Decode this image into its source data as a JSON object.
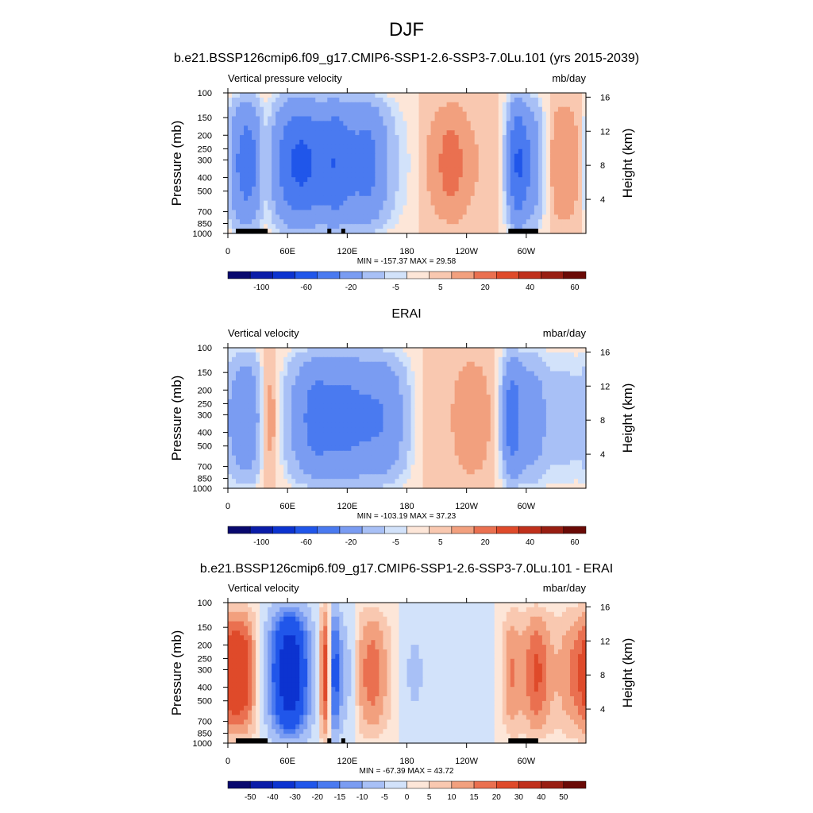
{
  "figure": {
    "title": "DJF"
  },
  "colors": {
    "pressure_velocity_scale": [
      "#08086e",
      "#0a1ca8",
      "#0c33d0",
      "#2056ea",
      "#4a7af0",
      "#7a9cf2",
      "#a8c0f6",
      "#d2e2fa",
      "#fde6d8",
      "#f9c8b0",
      "#f2a07e",
      "#ea7050",
      "#df4a2a",
      "#c0301c",
      "#981e12",
      "#6a0a06"
    ],
    "land_mask": "#000000"
  },
  "chart_data": [
    {
      "type": "heatmap",
      "title": "b.e21.BSSP126cmip6.f09_g17.CMIP6-SSP1-2.6-SSP3-7.0Lu.101 (yrs 2015-2039)",
      "left_label": "Vertical pressure velocity",
      "units": "mb/day",
      "ylabel": "Pressure (mb)",
      "y2label": "Height (km)",
      "x_ticks": [
        "0",
        "60E",
        "120E",
        "180",
        "120W",
        "60W"
      ],
      "y_ticks": [
        "100",
        "150",
        "200",
        "250",
        "300",
        "400",
        "500",
        "700",
        "850",
        "1000"
      ],
      "y2_ticks": [
        "16",
        "12",
        "8",
        "4"
      ],
      "min_max_text": "MIN = -157.37  MAX =  29.58",
      "colorbar_labels": [
        "-100",
        "-60",
        "-20",
        "-5",
        "5",
        "20",
        "40",
        "60"
      ],
      "xlim": [
        0,
        360
      ],
      "ylim": [
        1000,
        100
      ],
      "field": [
        {
          "lon": 0,
          "w": 8,
          "v": 2
        },
        {
          "lon": 10,
          "w": 14,
          "v": -45
        },
        {
          "lon": 25,
          "w": 8,
          "v": -20
        },
        {
          "lon": 38,
          "w": 6,
          "v": 12
        },
        {
          "lon": 60,
          "w": 14,
          "v": -45
        },
        {
          "lon": 80,
          "w": 12,
          "v": -40
        },
        {
          "lon": 108,
          "w": 14,
          "v": -55
        },
        {
          "lon": 142,
          "w": 14,
          "v": -45
        },
        {
          "lon": 175,
          "w": 12,
          "v": -6
        },
        {
          "lon": 200,
          "w": 10,
          "v": 2
        },
        {
          "lon": 225,
          "w": 16,
          "v": 12
        },
        {
          "lon": 260,
          "w": 10,
          "v": 3
        },
        {
          "lon": 290,
          "w": 7,
          "v": -50
        },
        {
          "lon": 305,
          "w": 10,
          "v": -35
        },
        {
          "lon": 330,
          "w": 12,
          "v": 10
        },
        {
          "lon": 355,
          "w": 10,
          "v": 22
        }
      ],
      "land_segments": [
        [
          8,
          40
        ],
        [
          100,
          104
        ],
        [
          114,
          118
        ],
        [
          282,
          312
        ]
      ]
    },
    {
      "type": "heatmap",
      "title": "ERAI",
      "left_label": "Vertical velocity",
      "units": "mbar/day",
      "ylabel": "Pressure (mb)",
      "y2label": "Height (km)",
      "x_ticks": [
        "0",
        "60E",
        "120E",
        "180",
        "120W",
        "60W"
      ],
      "y_ticks": [
        "100",
        "150",
        "200",
        "250",
        "300",
        "400",
        "500",
        "700",
        "850",
        "1000"
      ],
      "y2_ticks": [
        "16",
        "12",
        "8",
        "4"
      ],
      "min_max_text": "MIN = -103.19  MAX =  37.23",
      "colorbar_labels": [
        "-100",
        "-60",
        "-20",
        "-5",
        "5",
        "20",
        "40",
        "60"
      ],
      "xlim": [
        0,
        360
      ],
      "ylim": [
        1000,
        100
      ],
      "field": [
        {
          "lon": 5,
          "w": 8,
          "v": -6
        },
        {
          "lon": 20,
          "w": 12,
          "v": -35
        },
        {
          "lon": 42,
          "w": 8,
          "v": 15
        },
        {
          "lon": 60,
          "w": 10,
          "v": -10
        },
        {
          "lon": 85,
          "w": 14,
          "v": -35
        },
        {
          "lon": 120,
          "w": 22,
          "v": -45
        },
        {
          "lon": 160,
          "w": 16,
          "v": -30
        },
        {
          "lon": 200,
          "w": 12,
          "v": 2
        },
        {
          "lon": 245,
          "w": 16,
          "v": 10
        },
        {
          "lon": 285,
          "w": 7,
          "v": -45
        },
        {
          "lon": 305,
          "w": 12,
          "v": -30
        },
        {
          "lon": 340,
          "w": 14,
          "v": -15
        }
      ],
      "land_segments": []
    },
    {
      "type": "heatmap",
      "title": "b.e21.BSSP126cmip6.f09_g17.CMIP6-SSP1-2.6-SSP3-7.0Lu.101 - ERAI",
      "left_label": "Vertical velocity",
      "units": "mbar/day",
      "ylabel": "Pressure (mb)",
      "y2label": "Height (km)",
      "x_ticks": [
        "0",
        "60E",
        "120E",
        "180",
        "120W",
        "60W"
      ],
      "y_ticks": [
        "100",
        "150",
        "200",
        "250",
        "300",
        "400",
        "500",
        "700",
        "850",
        "1000"
      ],
      "y2_ticks": [
        "16",
        "12",
        "8",
        "4"
      ],
      "min_max_text": "MIN = -67.39  MAX =  43.72",
      "colorbar_labels": [
        "-50",
        "-40",
        "-30",
        "-20",
        "-15",
        "-10",
        "-5",
        "0",
        "5",
        "10",
        "15",
        "20",
        "30",
        "40",
        "50"
      ],
      "xlim": [
        0,
        360
      ],
      "ylim": [
        1000,
        100
      ],
      "field": [
        {
          "lon": 12,
          "w": 14,
          "v": 25
        },
        {
          "lon": 35,
          "w": 6,
          "v": -5
        },
        {
          "lon": 62,
          "w": 14,
          "v": -40
        },
        {
          "lon": 98,
          "w": 4,
          "v": 30
        },
        {
          "lon": 107,
          "w": 5,
          "v": -25
        },
        {
          "lon": 122,
          "w": 6,
          "v": -10
        },
        {
          "lon": 145,
          "w": 14,
          "v": 18
        },
        {
          "lon": 185,
          "w": 12,
          "v": -5
        },
        {
          "lon": 230,
          "w": 30,
          "v": -3
        },
        {
          "lon": 285,
          "w": 8,
          "v": 15
        },
        {
          "lon": 310,
          "w": 10,
          "v": 20
        },
        {
          "lon": 345,
          "w": 16,
          "v": 12
        }
      ],
      "land_segments": [
        [
          8,
          40
        ],
        [
          100,
          104
        ],
        [
          114,
          118
        ],
        [
          282,
          312
        ]
      ]
    }
  ]
}
